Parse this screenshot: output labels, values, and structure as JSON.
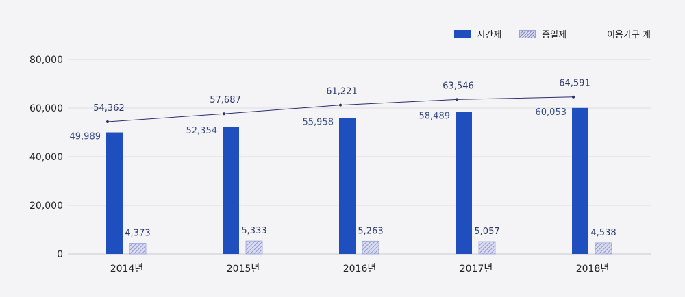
{
  "chart_data": {
    "type": "bar",
    "categories": [
      "2014년",
      "2015년",
      "2016년",
      "2017년",
      "2018년"
    ],
    "series": [
      {
        "name": "시간제",
        "type": "bar",
        "color": "#1f4fbf",
        "values": [
          49989,
          52354,
          55958,
          58489,
          60053
        ],
        "labels": [
          "49,989",
          "52,354",
          "55,958",
          "58,489",
          "60,053"
        ]
      },
      {
        "name": "종일제",
        "type": "bar",
        "pattern": "hatch",
        "color": "#8a90cf",
        "values": [
          4373,
          5333,
          5263,
          5057,
          4538
        ],
        "labels": [
          "4,373",
          "5,333",
          "5,263",
          "5,057",
          "4,538"
        ]
      },
      {
        "name": "이용가구 계",
        "type": "line",
        "color": "#2b2f6b",
        "values": [
          54362,
          57687,
          61221,
          63546,
          64591
        ],
        "labels": [
          "54,362",
          "57,687",
          "61,221",
          "63,546",
          "64,591"
        ]
      }
    ],
    "y_ticks": [
      "0",
      "20,000",
      "40,000",
      "60,000",
      "80,000"
    ],
    "ylim": [
      0,
      80000
    ],
    "grid": true,
    "legend": "top-right"
  }
}
